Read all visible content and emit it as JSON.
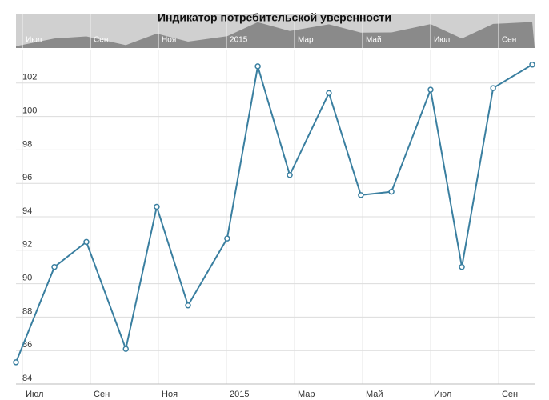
{
  "chart_data": {
    "type": "line",
    "title": "Индикатор потребительской уверенности",
    "x": [
      6.81,
      7.94,
      8.88,
      10.04,
      10.95,
      11.87,
      13.02,
      13.92,
      14.86,
      16.01,
      16.95,
      17.85,
      19.0,
      19.92,
      20.84,
      21.99
    ],
    "series": [
      {
        "name": "Индикатор потребительской уверенности",
        "color": "#3a7fa0",
        "values": [
          85.3,
          91.0,
          92.5,
          86.1,
          94.6,
          88.7,
          92.7,
          103.0,
          96.5,
          101.4,
          95.3,
          95.5,
          101.6,
          91.0,
          101.7,
          103.1
        ]
      }
    ],
    "xlim": [
      6.81,
      22.06
    ],
    "xticks": [
      {
        "value": 7,
        "label": "Июл"
      },
      {
        "value": 9,
        "label": "Сен"
      },
      {
        "value": 11,
        "label": "Ноя"
      },
      {
        "value": 13,
        "label": "2015"
      },
      {
        "value": 15,
        "label": "Мар"
      },
      {
        "value": 17,
        "label": "Май"
      },
      {
        "value": 19,
        "label": "Июл"
      },
      {
        "value": 21,
        "label": "Сен"
      }
    ],
    "ylim": [
      84,
      104
    ],
    "yticks": [
      84,
      86,
      88,
      90,
      92,
      94,
      96,
      98,
      100,
      102
    ],
    "grid": true
  }
}
